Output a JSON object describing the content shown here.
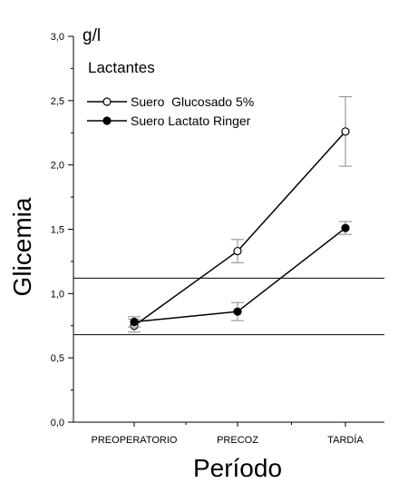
{
  "chart_data": {
    "type": "line",
    "categories": [
      "PREOPERATORIO",
      "PRECOZ",
      "TARDÍA"
    ],
    "ylim": [
      0,
      3
    ],
    "yticks": [
      "0,0",
      "0,5",
      "1,0",
      "1,5",
      "2,0",
      "2,5",
      "3,0"
    ],
    "ytick_values": [
      0,
      0.5,
      1.0,
      1.5,
      2.0,
      2.5,
      3.0
    ],
    "xlabel": "Período",
    "ylabel": "Glicemia",
    "unit": "g/l",
    "panel_label": "Lactantes",
    "grid": false,
    "legend_position": "top-left",
    "series": [
      {
        "name": "Suero  Glucosado 5%",
        "marker": "open-circle",
        "values": [
          0.75,
          1.33,
          2.26
        ],
        "error": [
          0.05,
          0.09,
          0.27
        ]
      },
      {
        "name": "Suero Lactato Ringer",
        "marker": "filled-circle",
        "values": [
          0.78,
          0.86,
          1.51
        ],
        "error": [
          0.04,
          0.07,
          0.05
        ]
      }
    ],
    "reference_lines": [
      1.12,
      0.68
    ]
  }
}
